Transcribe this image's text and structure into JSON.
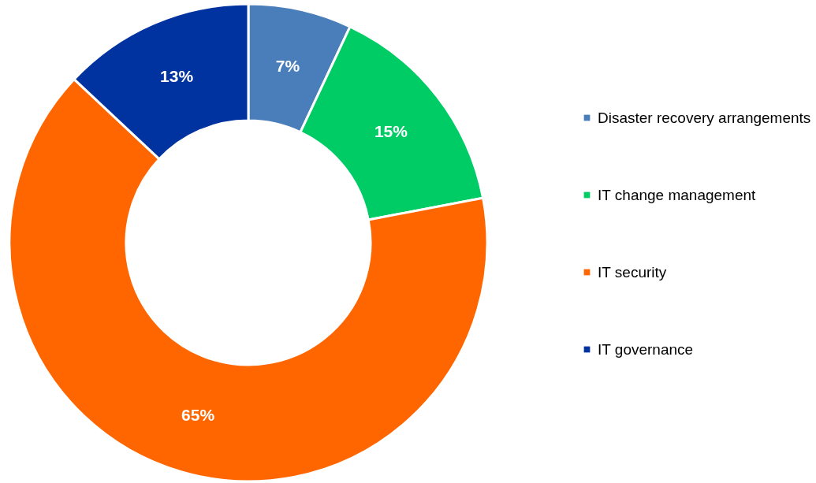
{
  "chart_data": {
    "type": "donut",
    "categories": [
      "Disaster recovery arrangements",
      "IT change management",
      "IT security",
      "IT governance"
    ],
    "values": [
      7,
      15,
      65,
      13
    ],
    "colors": [
      "#4a7ebb",
      "#00cc66",
      "#ff6600",
      "#0033a0"
    ],
    "value_labels": [
      "7%",
      "15%",
      "65%",
      "13%"
    ],
    "legend": "right"
  }
}
